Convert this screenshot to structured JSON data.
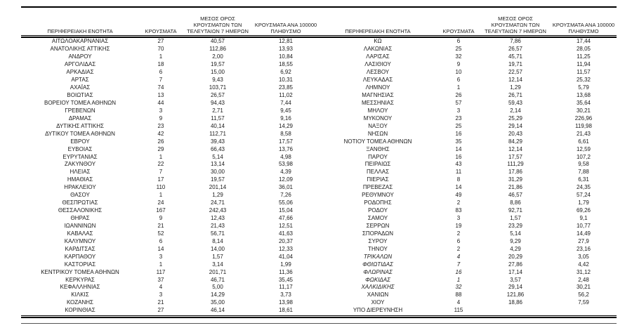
{
  "headers": {
    "region": "ΠΕΡΙΦΕΡΕΙΑΚΗ ΕΝΟΤΗΤΑ",
    "cases": "ΚΡΟΥΣΜΑΤΑ",
    "avg7": "ΜΕΣΟΣ ΟΡΟΣ\nΚΡΟΥΣΜΑΤΩΝ ΤΩΝ\nΤΕΛΕΥΤΑΙΩΝ 7 ΗΜΕΡΩΝ",
    "per100k": "ΚΡΟΥΣΜΑΤΑ ΑΝΑ 100000\nΠΛΗΘΥΣΜΟ"
  },
  "colors": {
    "text": "#1a1a1a",
    "rule": "#000000",
    "background": "#ffffff"
  },
  "chart_data": {
    "type": "table",
    "title": "",
    "columns": [
      "ΠΕΡΙΦΕΡΕΙΑΚΗ ΕΝΟΤΗΤΑ",
      "ΚΡΟΥΣΜΑΤΑ",
      "ΜΕΣΟΣ ΟΡΟΣ ΚΡΟΥΣΜΑΤΩΝ ΤΩΝ ΤΕΛΕΥΤΑΙΩΝ 7 ΗΜΕΡΩΝ",
      "ΚΡΟΥΣΜΑΤΑ ΑΝΑ 100000 ΠΛΗΘΥΣΜΟ"
    ]
  },
  "tables": [
    {
      "rows": [
        [
          "ΑΙΤΩΛΟΑΚΑΡΝΑΝΙΑΣ",
          "27",
          "40,57",
          "12,81"
        ],
        [
          "ΑΝΑΤΟΛΙΚΗΣ ΑΤΤΙΚΗΣ",
          "70",
          "112,86",
          "13,93"
        ],
        [
          "ΑΝΔΡΟΥ",
          "1",
          "2,00",
          "10,84"
        ],
        [
          "ΑΡΓΟΛΙΔΑΣ",
          "18",
          "19,57",
          "18,55"
        ],
        [
          "ΑΡΚΑΔΙΑΣ",
          "6",
          "15,00",
          "6,92"
        ],
        [
          "ΑΡΤΑΣ",
          "7",
          "9,43",
          "10,31"
        ],
        [
          "ΑΧΑΪΑΣ",
          "74",
          "103,71",
          "23,85"
        ],
        [
          "ΒΟΙΩΤΙΑΣ",
          "13",
          "26,57",
          "11,02"
        ],
        [
          "ΒΟΡΕΙΟΥ ΤΟΜΕΑ ΑΘΗΝΩΝ",
          "44",
          "94,43",
          "7,44"
        ],
        [
          "ΓΡΕΒΕΝΩΝ",
          "3",
          "2,71",
          "9,45"
        ],
        [
          "ΔΡΑΜΑΣ",
          "9",
          "11,57",
          "9,16"
        ],
        [
          "ΔΥΤΙΚΗΣ ΑΤΤΙΚΗΣ",
          "23",
          "40,14",
          "14,29"
        ],
        [
          "ΔΥΤΙΚΟΥ ΤΟΜΕΑ ΑΘΗΝΩΝ",
          "42",
          "112,71",
          "8,58"
        ],
        [
          "ΕΒΡΟΥ",
          "26",
          "39,43",
          "17,57"
        ],
        [
          "ΕΥΒΟΙΑΣ",
          "29",
          "66,43",
          "13,76"
        ],
        [
          "ΕΥΡΥΤΑΝΙΑΣ",
          "1",
          "5,14",
          "4,98"
        ],
        [
          "ΖΑΚΥΝΘΟΥ",
          "22",
          "13,14",
          "53,98"
        ],
        [
          "ΗΛΕΙΑΣ",
          "7",
          "30,00",
          "4,39"
        ],
        [
          "ΗΜΑΘΙΑΣ",
          "17",
          "19,57",
          "12,09"
        ],
        [
          "ΗΡΑΚΛΕΙΟΥ",
          "110",
          "201,14",
          "36,01"
        ],
        [
          "ΘΑΣΟΥ",
          "1",
          "1,29",
          "7,26"
        ],
        [
          "ΘΕΣΠΡΩΤΙΑΣ",
          "24",
          "24,71",
          "55,06"
        ],
        [
          "ΘΕΣΣΑΛΟΝΙΚΗΣ",
          "167",
          "242,43",
          "15,04"
        ],
        [
          "ΘΗΡΑΣ",
          "9",
          "12,43",
          "47,66"
        ],
        [
          "ΙΩΑΝΝΙΝΩΝ",
          "21",
          "21,43",
          "12,51"
        ],
        [
          "ΚΑΒΑΛΑΣ",
          "52",
          "56,71",
          "41,63"
        ],
        [
          "ΚΑΛΥΜΝΟΥ",
          "6",
          "8,14",
          "20,37"
        ],
        [
          "ΚΑΡΔΙΤΣΑΣ",
          "14",
          "14,00",
          "12,33"
        ],
        [
          "ΚΑΡΠΑΘΟΥ",
          "3",
          "1,57",
          "41,04"
        ],
        [
          "ΚΑΣΤΟΡΙΑΣ",
          "1",
          "3,14",
          "1,99"
        ],
        [
          "ΚΕΝΤΡΙΚΟΥ ΤΟΜΕΑ ΑΘΗΝΩΝ",
          "117",
          "201,71",
          "11,36"
        ],
        [
          "ΚΕΡΚΥΡΑΣ",
          "37",
          "46,71",
          "35,45"
        ],
        [
          "ΚΕΦΑΛΛΗΝΙΑΣ",
          "4",
          "5,00",
          "11,17"
        ],
        [
          "ΚΙΛΚΙΣ",
          "3",
          "14,29",
          "3,73"
        ],
        [
          "ΚΟΖΑΝΗΣ",
          "21",
          "35,00",
          "13,98"
        ],
        [
          "ΚΟΡΙΝΘΙΑΣ",
          "27",
          "46,14",
          "18,61"
        ]
      ],
      "italic_rows": []
    },
    {
      "rows": [
        [
          "ΚΩ",
          "6",
          "7,86",
          "17,44"
        ],
        [
          "ΛΑΚΩΝΙΑΣ",
          "25",
          "26,57",
          "28,05"
        ],
        [
          "ΛΑΡΙΣΑΣ",
          "32",
          "45,71",
          "11,25"
        ],
        [
          "ΛΑΣΙΘΙΟΥ",
          "9",
          "19,71",
          "11,94"
        ],
        [
          "ΛΕΣΒΟΥ",
          "10",
          "22,57",
          "11,57"
        ],
        [
          "ΛΕΥΚΑΔΑΣ",
          "6",
          "12,14",
          "25,32"
        ],
        [
          "ΛΗΜΝΟΥ",
          "1",
          "1,29",
          "5,79"
        ],
        [
          "ΜΑΓΝΗΣΙΑΣ",
          "26",
          "26,71",
          "13,68"
        ],
        [
          "ΜΕΣΣΗΝΙΑΣ",
          "57",
          "59,43",
          "35,64"
        ],
        [
          "ΜΗΛΟΥ",
          "3",
          "2,14",
          "30,21"
        ],
        [
          "ΜΥΚΟΝΟΥ",
          "23",
          "25,29",
          "226,96"
        ],
        [
          "ΝΑΞΟΥ",
          "25",
          "29,14",
          "119,98"
        ],
        [
          "ΝΗΣΩΝ",
          "16",
          "20,43",
          "21,43"
        ],
        [
          "ΝΟΤΙΟΥ ΤΟΜΕΑ ΑΘΗΝΩΝ",
          "35",
          "84,29",
          "6,61"
        ],
        [
          "ΞΑΝΘΗΣ",
          "14",
          "12,14",
          "12,59"
        ],
        [
          "ΠΑΡΟΥ",
          "16",
          "17,57",
          "107,2"
        ],
        [
          "ΠΕΙΡΑΙΩΣ",
          "43",
          "111,29",
          "9,58"
        ],
        [
          "ΠΕΛΛΑΣ",
          "11",
          "17,86",
          "7,88"
        ],
        [
          "ΠΙΕΡΙΑΣ",
          "8",
          "31,29",
          "6,31"
        ],
        [
          "ΠΡΕΒΕΖΑΣ",
          "14",
          "21,86",
          "24,35"
        ],
        [
          "ΡΕΘΥΜΝΟΥ",
          "49",
          "46,57",
          "57,24"
        ],
        [
          "ΡΟΔΟΠΗΣ",
          "2",
          "8,86",
          "1,79"
        ],
        [
          "ΡΟΔΟΥ",
          "83",
          "92,71",
          "69,26"
        ],
        [
          "ΣΑΜΟΥ",
          "3",
          "1,57",
          "9,1"
        ],
        [
          "ΣΕΡΡΩΝ",
          "19",
          "23,29",
          "10,77"
        ],
        [
          "ΣΠΟΡΑΔΩΝ",
          "2",
          "5,14",
          "14,49"
        ],
        [
          "ΣΥΡΟΥ",
          "6",
          "9,29",
          "27,9"
        ],
        [
          "ΤΗΝΟΥ",
          "2",
          "4,29",
          "23,16"
        ],
        [
          "ΤΡΙΚΑΛΩΝ",
          "4",
          "20,29",
          "3,05"
        ],
        [
          "ΦΘΙΩΤΙΔΑΣ",
          "7",
          "27,86",
          "4,42"
        ],
        [
          "ΦΛΩΡΙΝΑΣ",
          "16",
          "17,14",
          "31,12"
        ],
        [
          "ΦΩΚΙΔΑΣ",
          "1",
          "3,57",
          "2,48"
        ],
        [
          "ΧΑΛΚΙΔΙΚΗΣ",
          "32",
          "29,14",
          "30,21"
        ],
        [
          "ΧΑΝΙΩΝ",
          "88",
          "121,86",
          "56,2"
        ],
        [
          "ΧΙΟΥ",
          "4",
          "18,86",
          "7,59"
        ],
        [
          "ΥΠΟ ΔΙΕΡΕΥΝΗΣΗ",
          "115",
          "",
          ""
        ]
      ],
      "italic_rows": [
        28,
        29,
        30,
        31,
        32
      ]
    }
  ]
}
